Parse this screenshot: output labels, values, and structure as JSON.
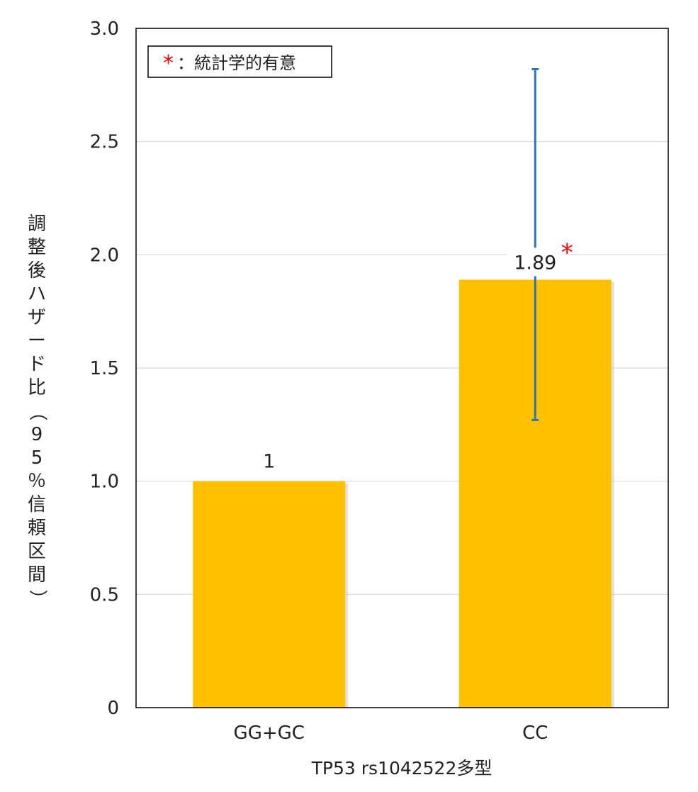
{
  "chart_data": {
    "type": "bar",
    "categories": [
      "GG+GC",
      "CC"
    ],
    "values": [
      1,
      1.89
    ],
    "data_labels": [
      "1",
      "1.89"
    ],
    "error_bars": [
      null,
      {
        "low": 1.27,
        "high": 2.82
      }
    ],
    "significance_marker": {
      "category": "CC",
      "symbol": "*"
    },
    "xlabel": "TP53 rs1042522多型",
    "ylabel": "調整後ハザード比（95％信頼区間）",
    "ylim": [
      0,
      3.0
    ],
    "yticks": [
      "0",
      "0.5",
      "1.0",
      "1.5",
      "2.0",
      "2.5",
      "3.0"
    ],
    "ytick_values": [
      0,
      0.5,
      1.0,
      1.5,
      2.0,
      2.5,
      3.0
    ],
    "grid": true,
    "legend": {
      "placement": "top-left",
      "symbol": "*",
      "text": "：統計学的有意"
    },
    "colors": {
      "bar": "#FFC000",
      "error_bar": "#2E75B6",
      "marker": "#FF0000",
      "grid": "#D9D9D9"
    }
  }
}
